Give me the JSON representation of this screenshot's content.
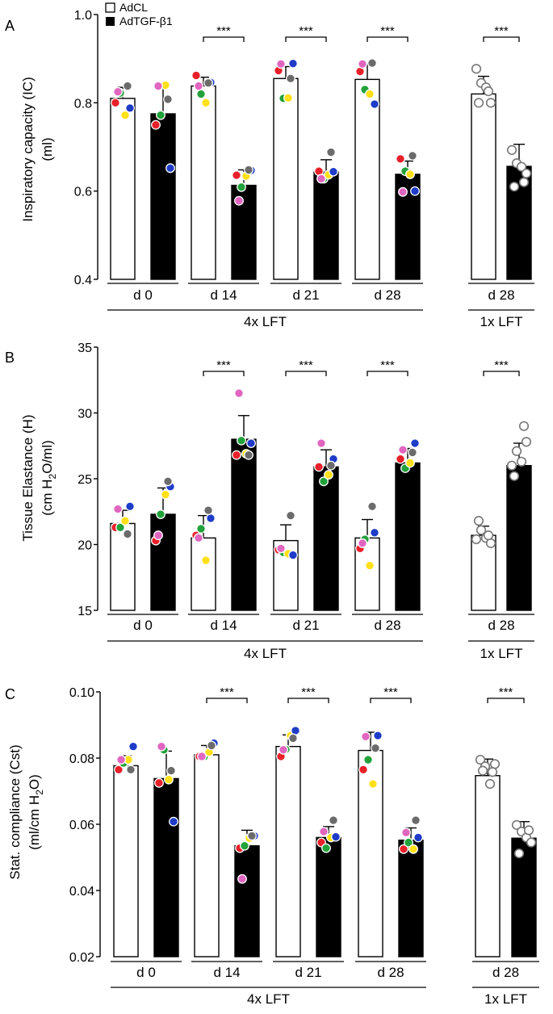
{
  "legend": {
    "control_label": "AdCL",
    "treatment_label": "AdTGF-β1"
  },
  "colors": {
    "control_bar": "#ffffff",
    "treatment_bar": "#000000",
    "outline": "#000000",
    "mouse_dots": [
      "#e8202a",
      "#22a23a",
      "#ffe01a",
      "#1e3cc8",
      "#e066c0",
      "#6b6b6b"
    ]
  },
  "chart_data": [
    {
      "type": "bar",
      "panel_label": "A",
      "title": "",
      "ylabel_line1": "Inspiratory capacity (IC)",
      "ylabel_line2": "(ml)",
      "ylim": [
        0.4,
        1.0
      ],
      "yticks": [
        "0.4",
        "0.6",
        "0.8",
        "1.0"
      ],
      "categories": [
        "d 0",
        "d 14",
        "d 21",
        "d 28",
        "d 28"
      ],
      "groups": [
        "4x LFT",
        "1x LFT"
      ],
      "significance": [
        "",
        "***",
        "***",
        "***",
        "***"
      ],
      "series": [
        {
          "name": "AdCL",
          "values": [
            0.81,
            0.838,
            0.855,
            0.853,
            0.82
          ],
          "errors": [
            0.025,
            0.02,
            0.027,
            0.035,
            0.04
          ],
          "points": [
            [
              0.8,
              0.822,
              0.772,
              0.788,
              0.825,
              0.838
            ],
            [
              0.862,
              0.82,
              0.8,
              0.846,
              0.838,
              0.845
            ],
            [
              0.873,
              0.81,
              0.811,
              0.889,
              0.888,
              0.855
            ],
            [
              0.871,
              0.83,
              0.82,
              0.797,
              0.888,
              0.89
            ],
            [
              0.877,
              0.845,
              0.835,
              0.8,
              0.8,
              0.826
            ]
          ]
        },
        {
          "name": "AdTGF-β1",
          "values": [
            0.775,
            0.613,
            0.643,
            0.638,
            0.656
          ],
          "errors": [
            0.065,
            0.035,
            0.028,
            0.03,
            0.05
          ],
          "points": [
            [
              0.75,
              0.772,
              0.84,
              0.652,
              0.838,
              0.808
            ],
            [
              0.636,
              0.609,
              0.634,
              0.647,
              0.578,
              0.648
            ],
            [
              0.645,
              0.628,
              0.637,
              0.644,
              0.628,
              0.688
            ],
            [
              0.673,
              0.645,
              0.638,
              0.6,
              0.598,
              0.68
            ],
            [
              0.693,
              0.663,
              0.655,
              0.64,
              0.61,
              0.62
            ]
          ]
        }
      ]
    },
    {
      "type": "bar",
      "panel_label": "B",
      "title": "",
      "ylabel_line1": "Tissue Elastance (H)",
      "ylabel_prefix": "(cm H",
      "ylabel_sub": "2",
      "ylabel_suffix": "O/ml)",
      "ylim": [
        15,
        35
      ],
      "yticks": [
        "15",
        "20",
        "25",
        "30",
        "35"
      ],
      "categories": [
        "d 0",
        "d 14",
        "d 21",
        "d 28",
        "d 28"
      ],
      "groups": [
        "4x LFT",
        "1x LFT"
      ],
      "significance": [
        "",
        "***",
        "***",
        "***",
        "***"
      ],
      "series": [
        {
          "name": "AdCL",
          "values": [
            21.6,
            20.5,
            20.3,
            20.5,
            20.7
          ],
          "errors": [
            1.0,
            1.7,
            1.2,
            1.4,
            0.7
          ],
          "points": [
            [
              21.3,
              21.3,
              21.8,
              22.9,
              22.7,
              20.8
            ],
            [
              20.7,
              21.2,
              18.8,
              22.0,
              20.5,
              22.6
            ],
            [
              19.6,
              19.4,
              19.3,
              19.2,
              19.7,
              22.2
            ],
            [
              19.7,
              20.4,
              18.4,
              20.9,
              20.1,
              22.9
            ],
            [
              20.4,
              21.1,
              20.5,
              20.1,
              21.8,
              20.7
            ]
          ]
        },
        {
          "name": "AdTGF-β1",
          "values": [
            22.3,
            28.0,
            25.9,
            26.2,
            26.0
          ],
          "errors": [
            2.0,
            1.8,
            1.3,
            1.1,
            1.7
          ],
          "points": [
            [
              20.3,
              22.3,
              23.8,
              24.4,
              20.7,
              24.8
            ],
            [
              26.8,
              27.9,
              26.9,
              27.7,
              31.5,
              26.8
            ],
            [
              25.9,
              24.8,
              25.3,
              26.5,
              27.7,
              26.0
            ],
            [
              26.5,
              25.8,
              26.2,
              27.7,
              27.2,
              27.0
            ],
            [
              26.0,
              27.1,
              26.3,
              27.8,
              25.2,
              29.0
            ]
          ]
        }
      ]
    },
    {
      "type": "bar",
      "panel_label": "C",
      "title": "",
      "ylabel_line1": "Stat. compliance (Cst)",
      "ylabel_prefix": "(ml/cm H",
      "ylabel_sub": "2",
      "ylabel_suffix": "O)",
      "ylim": [
        0.02,
        0.1
      ],
      "yticks": [
        "0.02",
        "0.04",
        "0.06",
        "0.08",
        "0.10"
      ],
      "categories": [
        "d 0",
        "d 14",
        "d 21",
        "d 28",
        "d 28"
      ],
      "groups": [
        "4x LFT",
        "1x LFT"
      ],
      "significance": [
        "",
        "***",
        "***",
        "***",
        "***"
      ],
      "series": [
        {
          "name": "AdCL",
          "values": [
            0.0777,
            0.081,
            0.0835,
            0.0823,
            0.0747
          ],
          "errors": [
            0.003,
            0.0028,
            0.0035,
            0.0055,
            0.005
          ],
          "points": [
            [
              0.0765,
              0.0785,
              0.0795,
              0.0835,
              0.0795,
              0.0765
            ],
            [
              0.0805,
              0.0805,
              0.0818,
              0.0845,
              0.0805,
              0.0838
            ],
            [
              0.0805,
              0.0826,
              0.0868,
              0.0883,
              0.0825,
              0.086
            ],
            [
              0.0765,
              0.0795,
              0.0722,
              0.0868,
              0.0865,
              0.083
            ],
            [
              0.0795,
              0.0775,
              0.0722,
              0.0782,
              0.0762,
              0.0758
            ]
          ]
        },
        {
          "name": "AdTGF-β1",
          "values": [
            0.0738,
            0.0535,
            0.056,
            0.0552,
            0.0558
          ],
          "errors": [
            0.0083,
            0.0047,
            0.0033,
            0.0037,
            0.005
          ],
          "points": [
            [
              0.0725,
              0.0825,
              0.0735,
              0.0608,
              0.0835,
              0.0762
            ],
            [
              0.0528,
              0.0535,
              0.0558,
              0.0565,
              0.0435,
              0.0565
            ],
            [
              0.0545,
              0.0528,
              0.056,
              0.0562,
              0.0578,
              0.0612
            ],
            [
              0.0525,
              0.0545,
              0.0525,
              0.056,
              0.0575,
              0.0612
            ],
            [
              0.0598,
              0.0578,
              0.056,
              0.0545,
              0.0512,
              0.0582
            ]
          ]
        }
      ]
    }
  ]
}
